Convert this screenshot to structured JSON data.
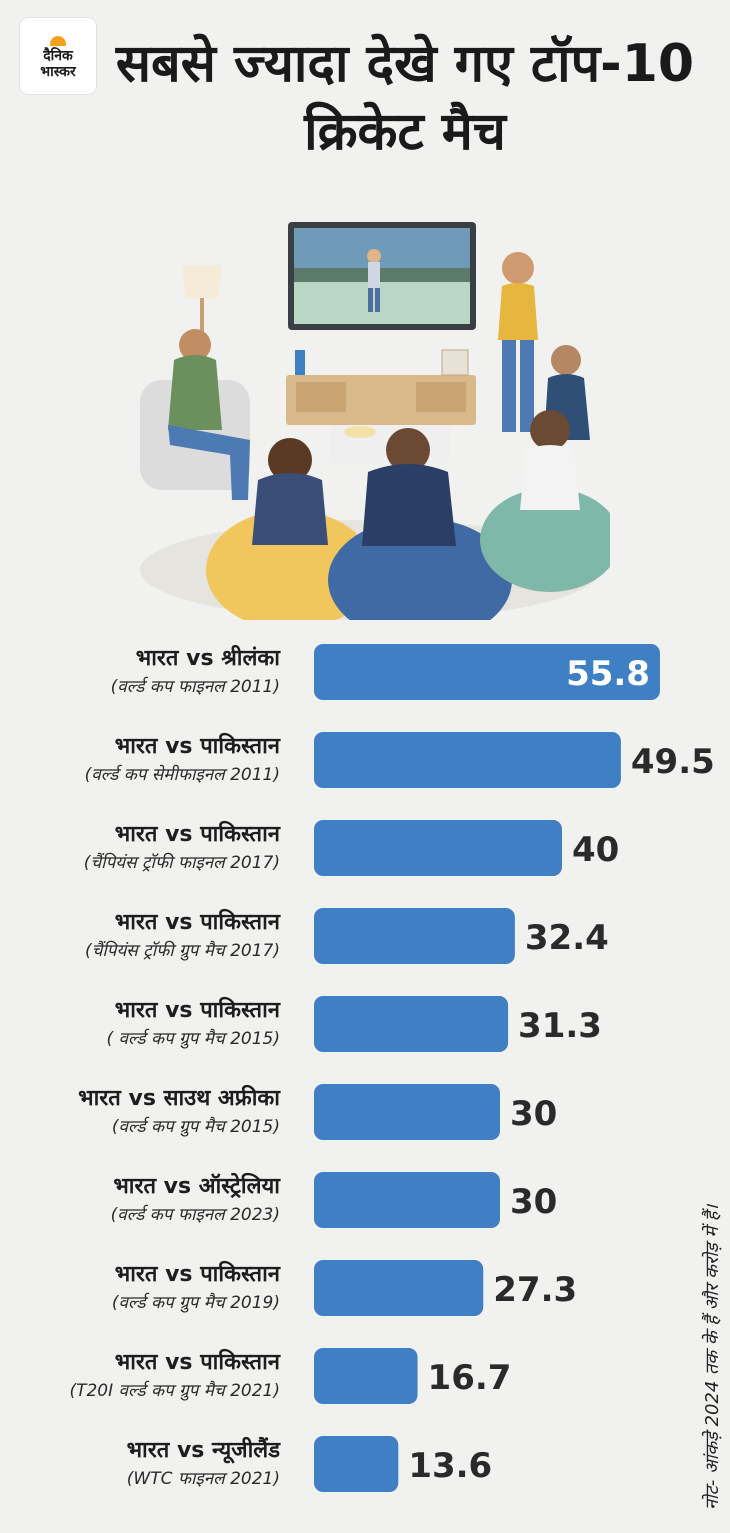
{
  "logo": {
    "line1": "दैनिक",
    "line2": "भास्कर"
  },
  "title": "सबसे ज्यादा देखे गए टॉप-10 क्रिकेट मैच",
  "note": "नोट- आंकड़े 2024 तक के हैं और करोड़ में हैं।",
  "colors": {
    "bar": "#3f7fc4",
    "value_in_bar": "#ffffff",
    "value_outside": "#2a2a2a"
  },
  "chart_data": {
    "type": "bar",
    "orientation": "horizontal",
    "categories": [
      "भारत vs श्रीलंका",
      "भारत vs पाकिस्तान",
      "भारत vs पाकिस्तान",
      "भारत vs पाकिस्तान",
      "भारत vs पाकिस्तान",
      "भारत vs साउथ अफ्रीका",
      "भारत vs ऑस्ट्रेलिया",
      "भारत vs पाकिस्तान",
      "भारत vs पाकिस्तान",
      "भारत vs न्यूजीलैंड"
    ],
    "subtitles": [
      "(वर्ल्ड कप फाइनल 2011)",
      "(वर्ल्ड कप सेमीफाइनल 2011)",
      "(चैंपियंस ट्रॉफी फाइनल 2017)",
      "(चैंपियंस ट्रॉफी ग्रुप मैच 2017)",
      "( वर्ल्ड कप ग्रुप मैच 2015)",
      "(वर्ल्ड कप ग्रुप मैच 2015)",
      "(वर्ल्ड कप फाइनल 2023)",
      "(वर्ल्ड कप ग्रुप मैच 2019)",
      "(T20I वर्ल्ड कप ग्रुप मैच 2021)",
      "(WTC फाइनल 2021)"
    ],
    "values": [
      55.8,
      49.5,
      40,
      32.4,
      31.3,
      30,
      30,
      27.3,
      16.7,
      13.6
    ],
    "value_labels": [
      "55.8",
      "49.5",
      "40",
      "32.4",
      "31.3",
      "30",
      "30",
      "27.3",
      "16.7",
      "13.6"
    ]
  }
}
